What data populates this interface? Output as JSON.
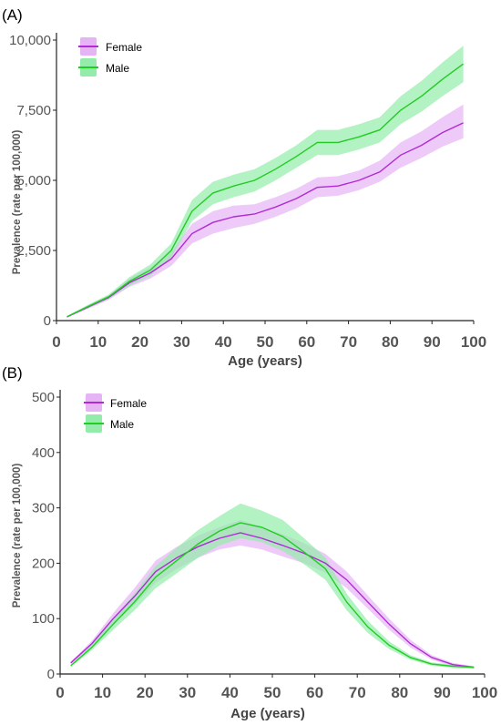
{
  "colors": {
    "Female": {
      "line": "#b02bd6",
      "band": "#e6b3f5"
    },
    "Male": {
      "line": "#22cc22",
      "band": "#93ecaa"
    },
    "axis": "#222222"
  },
  "chart_data": [
    {
      "panel": "(A)",
      "type": "line",
      "xlabel": "Age (years)",
      "ylabel": "Prevalence (rate per 100,000)",
      "xlim": [
        0,
        100
      ],
      "ylim": [
        0,
        10000
      ],
      "xticks": [
        "0",
        "10",
        "20",
        "30",
        "40",
        "50",
        "60",
        "70",
        "80",
        "90",
        "100"
      ],
      "yticks": [
        "0",
        "2,500",
        "5,000",
        "7,500",
        "10,000"
      ],
      "legend": "top-left",
      "grid": false,
      "x": [
        2.5,
        7.5,
        12.5,
        17.5,
        22.5,
        27.5,
        32.5,
        37.5,
        42.5,
        47.5,
        52.5,
        57.5,
        62.5,
        67.5,
        72.5,
        77.5,
        82.5,
        87.5,
        92.5,
        97.5
      ],
      "series": [
        {
          "name": "Female",
          "values": [
            130,
            480,
            820,
            1350,
            1700,
            2200,
            3100,
            3500,
            3700,
            3800,
            4050,
            4350,
            4750,
            4800,
            5000,
            5300,
            5900,
            6250,
            6700,
            7050
          ],
          "lower": [
            110,
            420,
            740,
            1200,
            1500,
            1950,
            2750,
            3100,
            3300,
            3450,
            3700,
            4000,
            4400,
            4450,
            4650,
            4950,
            5450,
            5800,
            6200,
            6500
          ],
          "upper": [
            150,
            540,
            900,
            1500,
            1900,
            2450,
            3450,
            3900,
            4100,
            4150,
            4400,
            4700,
            5100,
            5150,
            5350,
            5700,
            6350,
            6750,
            7250,
            7700
          ]
        },
        {
          "name": "Male",
          "values": [
            140,
            500,
            850,
            1400,
            1800,
            2500,
            3900,
            4550,
            4800,
            5000,
            5400,
            5850,
            6350,
            6350,
            6550,
            6800,
            7500,
            8000,
            8600,
            9150
          ],
          "lower": [
            120,
            440,
            770,
            1250,
            1600,
            2250,
            3550,
            4150,
            4400,
            4600,
            5000,
            5450,
            5900,
            5900,
            6100,
            6350,
            7000,
            7450,
            8000,
            8500
          ],
          "upper": [
            160,
            560,
            930,
            1550,
            2000,
            2750,
            4300,
            4950,
            5200,
            5400,
            5800,
            6250,
            6800,
            6800,
            7000,
            7250,
            8000,
            8550,
            9200,
            9800
          ]
        }
      ]
    },
    {
      "panel": "(B)",
      "type": "line",
      "xlabel": "Age (years)",
      "ylabel": "Prevalence (rate per 100,000)",
      "xlim": [
        0,
        100
      ],
      "ylim": [
        0,
        500
      ],
      "xticks": [
        "0",
        "10",
        "20",
        "30",
        "40",
        "50",
        "60",
        "70",
        "80",
        "90",
        "100"
      ],
      "yticks": [
        "0",
        "100",
        "200",
        "300",
        "400",
        "500"
      ],
      "legend": "top-left",
      "grid": false,
      "x": [
        2.5,
        7.5,
        12.5,
        17.5,
        22.5,
        27.5,
        32.5,
        37.5,
        42.5,
        47.5,
        52.5,
        57.5,
        62.5,
        67.5,
        72.5,
        77.5,
        82.5,
        87.5,
        92.5,
        97.5
      ],
      "series": [
        {
          "name": "Female",
          "values": [
            20,
            55,
            100,
            140,
            185,
            210,
            230,
            245,
            255,
            245,
            232,
            218,
            200,
            170,
            130,
            90,
            55,
            30,
            17,
            12
          ],
          "lower": [
            18,
            50,
            90,
            125,
            165,
            190,
            210,
            225,
            232,
            225,
            212,
            200,
            183,
            155,
            118,
            80,
            48,
            26,
            14,
            10
          ],
          "upper": [
            22,
            60,
            110,
            155,
            205,
            230,
            250,
            265,
            278,
            265,
            252,
            236,
            217,
            185,
            142,
            100,
            62,
            34,
            20,
            14
          ]
        },
        {
          "name": "Male",
          "values": [
            15,
            48,
            90,
            130,
            175,
            205,
            235,
            258,
            273,
            265,
            248,
            220,
            190,
            130,
            85,
            52,
            30,
            18,
            14,
            12
          ],
          "lower": [
            13,
            43,
            80,
            115,
            155,
            182,
            210,
            232,
            245,
            238,
            222,
            198,
            170,
            115,
            74,
            45,
            26,
            15,
            11,
            10
          ],
          "upper": [
            17,
            53,
            100,
            145,
            195,
            228,
            260,
            285,
            308,
            295,
            278,
            245,
            210,
            145,
            96,
            59,
            34,
            21,
            17,
            14
          ]
        }
      ]
    }
  ]
}
